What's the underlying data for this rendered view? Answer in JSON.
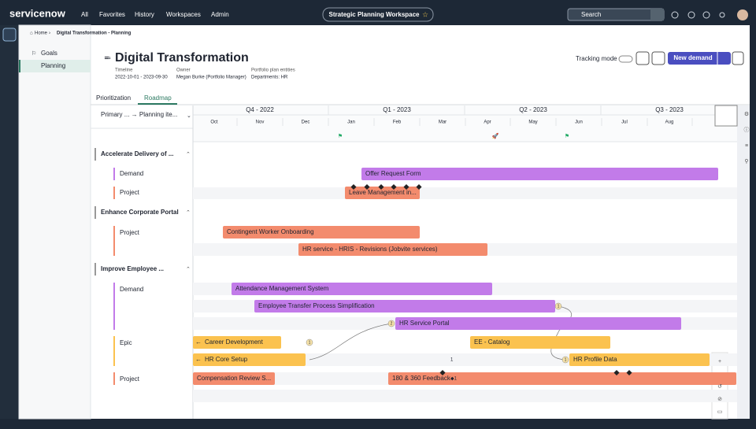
{
  "nav": {
    "brand": "servicenow",
    "links": [
      "All",
      "Favorites",
      "History",
      "Workspaces",
      "Admin"
    ],
    "workspace": "Strategic Planning Workspace",
    "search": "Search"
  },
  "breadcrumb": [
    "Home",
    "Digital Transformation - Planning"
  ],
  "sidebar": [
    "Goals",
    "Planning"
  ],
  "header": {
    "title": "Digital Transformation",
    "fields": [
      {
        "label": "Timeline",
        "value": "2022-10-01 - 2023-09-30"
      },
      {
        "label": "Owner",
        "value": "Megan Burke (Portfolio Manager)"
      },
      {
        "label": "Portfolio plan entities",
        "value": "Departments: HR"
      }
    ],
    "tracking": "Tracking mode",
    "new_demand": "New demand"
  },
  "tabs": [
    "Prioritization",
    "Roadmap"
  ],
  "roadmap": {
    "grouping": "Primary ... → Planning ite...",
    "quarters": [
      "Q4 - 2022",
      "Q1 - 2023",
      "Q2 - 2023",
      "Q3 - 2023"
    ],
    "months": [
      "Oct",
      "Nov",
      "Dec",
      "Jan",
      "Feb",
      "Mar",
      "Apr",
      "May",
      "Jun",
      "Jul",
      "Aug"
    ],
    "groups": [
      {
        "name": "Accelerate Delivery of ...",
        "rows": [
          "Demand",
          "Project"
        ]
      },
      {
        "name": "Enhance Corporate Portal",
        "rows": [
          "Project"
        ]
      },
      {
        "name": "Improve Employee ...",
        "rows": [
          "Demand",
          "Epic",
          "Project"
        ]
      }
    ],
    "bars": [
      {
        "label": "Offer Request Form",
        "kind": "demand"
      },
      {
        "label": "Leave Management in...",
        "kind": "project"
      },
      {
        "label": "Contingent Worker Onboarding",
        "kind": "project"
      },
      {
        "label": "HR service - HRIS - Revisions (Jobvite services)",
        "kind": "project"
      },
      {
        "label": "Attendance Management System",
        "kind": "demand"
      },
      {
        "label": "Employee Transfer Process Simplification",
        "kind": "demand",
        "badge": "1"
      },
      {
        "label": "HR Service Portal",
        "kind": "demand",
        "badge": "2"
      },
      {
        "label": "Career Development",
        "kind": "epic"
      },
      {
        "label": "EE - Catalog",
        "kind": "epic",
        "badge": "1"
      },
      {
        "label": "HR Core Setup",
        "kind": "epic",
        "badge": "1"
      },
      {
        "label": "HR Profile Data",
        "kind": "epic",
        "badge": "1"
      },
      {
        "label": "Compensation Review S...",
        "kind": "project"
      },
      {
        "label": "180 & 360 Feedback",
        "kind": "project",
        "badge": "◆1"
      }
    ],
    "colors": {
      "demand": "#c27be9",
      "project": "#f38b6d",
      "epic": "#fbc24f"
    }
  }
}
